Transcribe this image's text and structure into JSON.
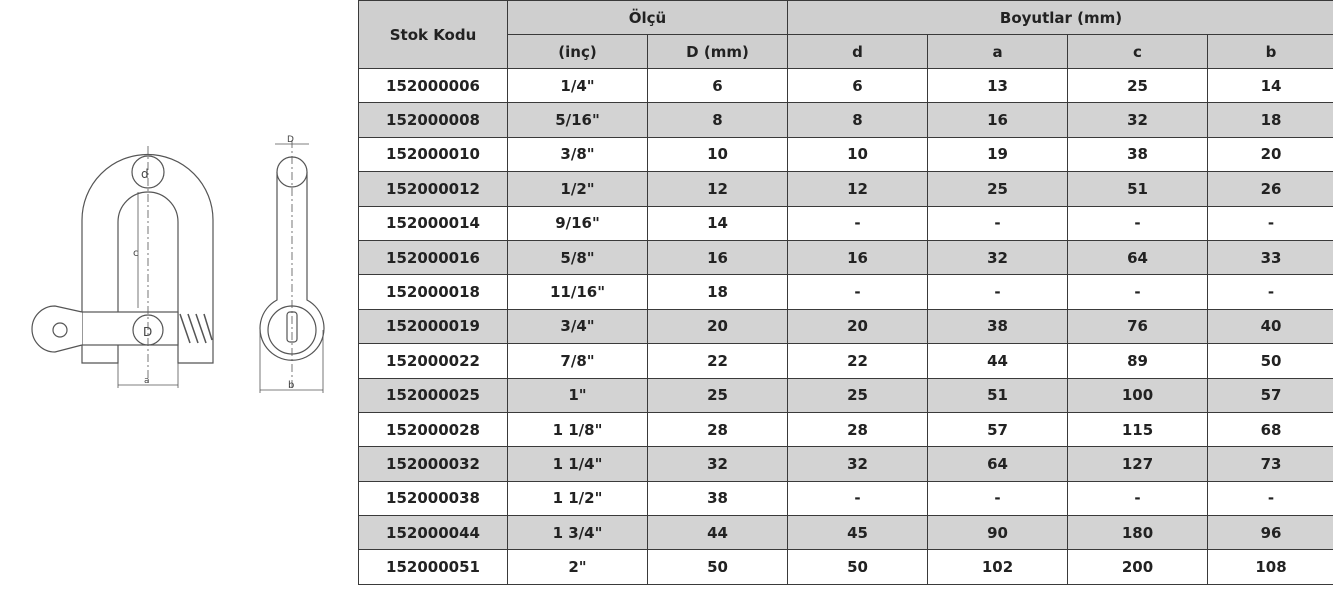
{
  "drawing": {
    "labels": {
      "d": "d",
      "D": "D",
      "c": "c",
      "a": "a",
      "b": "b",
      "D_side": "D"
    }
  },
  "table": {
    "headers": {
      "stock_code": "Stok Kodu",
      "size_group": "Ölçü",
      "dims_group": "Boyutlar (mm)",
      "columns": [
        "(inç)",
        "D (mm)",
        "d",
        "a",
        "c",
        "b"
      ]
    },
    "rows": [
      [
        "152000006",
        "1/4\"",
        "6",
        "6",
        "13",
        "25",
        "14"
      ],
      [
        "152000008",
        "5/16\"",
        "8",
        "8",
        "16",
        "32",
        "18"
      ],
      [
        "152000010",
        "3/8\"",
        "10",
        "10",
        "19",
        "38",
        "20"
      ],
      [
        "152000012",
        "1/2\"",
        "12",
        "12",
        "25",
        "51",
        "26"
      ],
      [
        "152000014",
        "9/16\"",
        "14",
        "-",
        "-",
        "-",
        "-"
      ],
      [
        "152000016",
        "5/8\"",
        "16",
        "16",
        "32",
        "64",
        "33"
      ],
      [
        "152000018",
        "11/16\"",
        "18",
        "-",
        "-",
        "-",
        "-"
      ],
      [
        "152000019",
        "3/4\"",
        "20",
        "20",
        "38",
        "76",
        "40"
      ],
      [
        "152000022",
        "7/8\"",
        "22",
        "22",
        "44",
        "89",
        "50"
      ],
      [
        "152000025",
        "1\"",
        "25",
        "25",
        "51",
        "100",
        "57"
      ],
      [
        "152000028",
        "1 1/8\"",
        "28",
        "28",
        "57",
        "115",
        "68"
      ],
      [
        "152000032",
        "1 1/4\"",
        "32",
        "32",
        "64",
        "127",
        "73"
      ],
      [
        "152000038",
        "1 1/2\"",
        "38",
        "-",
        "-",
        "-",
        "-"
      ],
      [
        "152000044",
        "1 3/4\"",
        "44",
        "45",
        "90",
        "180",
        "96"
      ],
      [
        "152000051",
        "2\"",
        "50",
        "50",
        "102",
        "200",
        "108"
      ]
    ]
  },
  "colors": {
    "header_bg": "#cfcfcf",
    "alt_row_bg": "#d3d3d3",
    "border": "#3a3a3a"
  }
}
